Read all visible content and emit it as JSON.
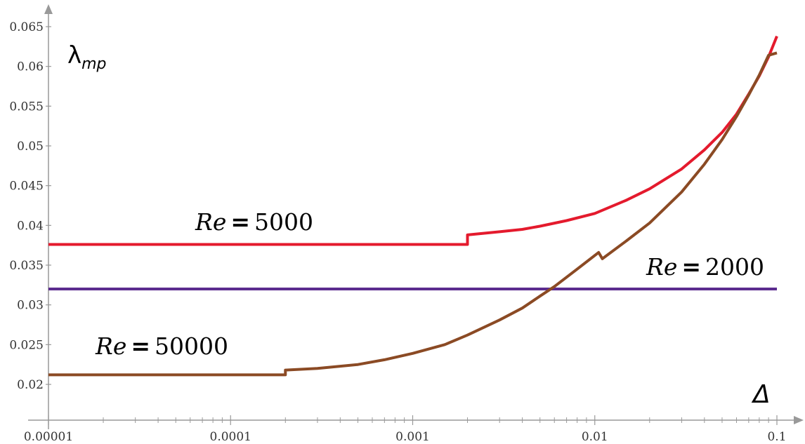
{
  "chart_data": {
    "type": "line",
    "xscale": "log",
    "xlim": [
      1e-05,
      0.1
    ],
    "ylim": [
      0.0185,
      0.066
    ],
    "x_ticks": [
      1e-05,
      0.0001,
      0.001,
      0.01,
      0.1
    ],
    "x_tick_labels": [
      "0.00001",
      "0.0001",
      "0.001",
      "0.01",
      "0.1"
    ],
    "y_ticks": [
      0.02,
      0.025,
      0.03,
      0.035,
      0.04,
      0.045,
      0.05,
      0.055,
      0.06,
      0.065
    ],
    "y_tick_labels": [
      "0.02",
      "0.025",
      "0.03",
      "0.035",
      "0.04",
      "0.045",
      "0.05",
      "0.055",
      "0.06",
      "0.065"
    ],
    "ylabel": {
      "symbol": "λ",
      "subscript": "mp"
    },
    "xlabel": "Δ",
    "grid": false,
    "annotations": [
      {
        "series": 0,
        "var": "Re",
        "eq": "=",
        "val": "5000"
      },
      {
        "series": 1,
        "var": "Re",
        "eq": "=",
        "val": "2000"
      },
      {
        "series": 2,
        "var": "Re",
        "eq": "=",
        "val": "50000"
      }
    ],
    "series": [
      {
        "color": "#e41a2d",
        "points": [
          [
            1e-05,
            0.0376
          ],
          [
            0.002,
            0.0376
          ],
          [
            0.002,
            0.0388
          ],
          [
            0.003,
            0.0392
          ],
          [
            0.004,
            0.0395
          ],
          [
            0.005,
            0.0399
          ],
          [
            0.007,
            0.0406
          ],
          [
            0.01,
            0.0415
          ],
          [
            0.015,
            0.0432
          ],
          [
            0.02,
            0.0446
          ],
          [
            0.03,
            0.0471
          ],
          [
            0.04,
            0.0495
          ],
          [
            0.05,
            0.0517
          ],
          [
            0.06,
            0.054
          ],
          [
            0.07,
            0.0565
          ],
          [
            0.08,
            0.0588
          ],
          [
            0.09,
            0.0612
          ],
          [
            0.1,
            0.0638
          ]
        ]
      },
      {
        "color": "#5b2c8f",
        "points": [
          [
            1e-05,
            0.032
          ],
          [
            0.1,
            0.032
          ]
        ]
      },
      {
        "color": "#8b4a24",
        "points": [
          [
            1e-05,
            0.0212
          ],
          [
            0.0002,
            0.0212
          ],
          [
            0.0002,
            0.0218
          ],
          [
            0.0003,
            0.022
          ],
          [
            0.0005,
            0.0225
          ],
          [
            0.0007,
            0.0231
          ],
          [
            0.001,
            0.0239
          ],
          [
            0.0015,
            0.025
          ],
          [
            0.002,
            0.0262
          ],
          [
            0.003,
            0.0281
          ],
          [
            0.004,
            0.0296
          ],
          [
            0.005,
            0.0311
          ],
          [
            0.006,
            0.0323
          ],
          [
            0.008,
            0.0345
          ],
          [
            0.0105,
            0.0366
          ],
          [
            0.011,
            0.0358
          ],
          [
            0.015,
            0.0381
          ],
          [
            0.02,
            0.0403
          ],
          [
            0.03,
            0.0442
          ],
          [
            0.04,
            0.0477
          ],
          [
            0.05,
            0.0508
          ],
          [
            0.06,
            0.0537
          ],
          [
            0.07,
            0.0564
          ],
          [
            0.08,
            0.0589
          ],
          [
            0.09,
            0.0614
          ],
          [
            0.1,
            0.0617
          ]
        ]
      }
    ]
  }
}
